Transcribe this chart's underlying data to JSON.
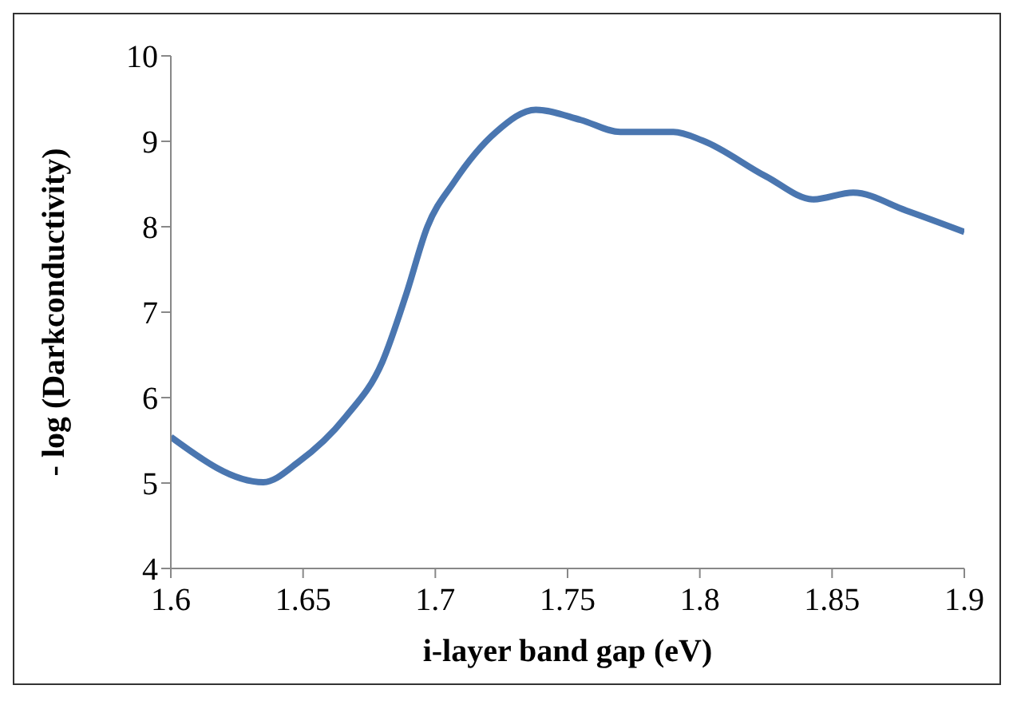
{
  "chart_data": {
    "type": "line",
    "xlabel": "i-layer band gap (eV)",
    "ylabel": "- log (Darkconductivity)",
    "x": [
      1.6,
      1.635,
      1.648,
      1.666,
      1.68,
      1.689,
      1.697,
      1.707,
      1.723,
      1.738,
      1.755,
      1.77,
      1.79,
      1.801,
      1.825,
      1.843,
      1.858,
      1.878,
      1.9
    ],
    "series": [
      {
        "color": "#4a76b0",
        "values": [
          5.54,
          5.01,
          5.24,
          5.77,
          6.42,
          7.21,
          8.0,
          8.52,
          9.11,
          9.37,
          9.25,
          9.11,
          9.11,
          9.01,
          8.59,
          8.32,
          8.4,
          8.19,
          7.94
        ]
      }
    ],
    "xlim": [
      1.6,
      1.9
    ],
    "xticks": [
      1.6,
      1.65,
      1.7,
      1.75,
      1.8,
      1.85,
      1.9
    ],
    "ylim": [
      4,
      10
    ],
    "yticks": [
      4,
      5,
      6,
      7,
      8,
      9,
      10
    ],
    "grid": false,
    "legend": false,
    "marker": "none",
    "line_style": "solid"
  }
}
